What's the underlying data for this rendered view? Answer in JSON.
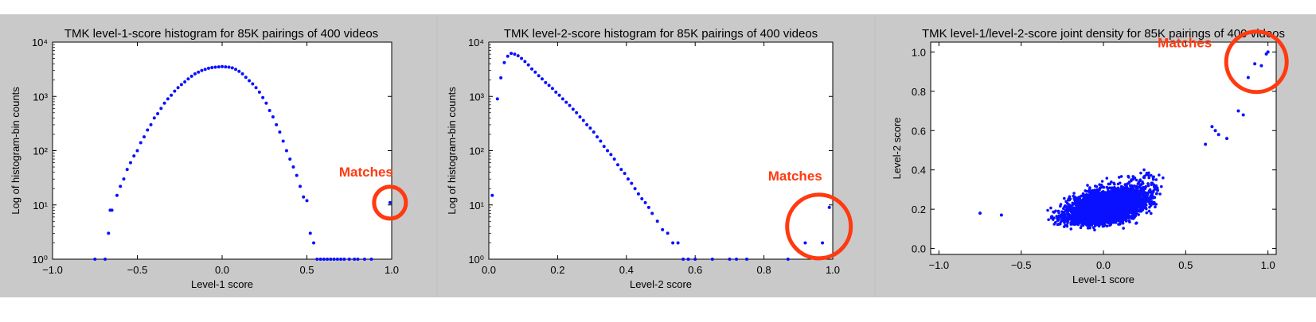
{
  "colors": {
    "panel_bg": "#c9c9c9",
    "plot_bg": "#ffffff",
    "point": "#0a10ff",
    "highlight": "#ff3a10",
    "text": "#000000"
  },
  "chart_data": [
    {
      "type": "scatter",
      "title": "TMK level-1-score histogram for 85K pairings of 400 videos",
      "xlabel": "Level-1 score",
      "ylabel": "Log of histogram-bin counts",
      "xlim": [
        -1.0,
        1.0
      ],
      "ylim": [
        1,
        10000
      ],
      "yscale": "log",
      "xticks": [
        "−1.0",
        "−0.5",
        "0.0",
        "0.5",
        "1.0"
      ],
      "xtick_values": [
        -1.0,
        -0.5,
        0.0,
        0.5,
        1.0
      ],
      "yticks": [
        "10⁰",
        "10¹",
        "10²",
        "10³",
        "10⁴"
      ],
      "ytick_values": [
        1,
        10,
        100,
        1000,
        10000
      ],
      "grid": false,
      "annotation": {
        "text": "Matches",
        "x": 0.99,
        "y": 11
      },
      "x": [
        -0.75,
        -0.69,
        -0.67,
        -0.66,
        -0.65,
        -0.62,
        -0.6,
        -0.58,
        -0.56,
        -0.54,
        -0.52,
        -0.5,
        -0.48,
        -0.46,
        -0.44,
        -0.42,
        -0.4,
        -0.38,
        -0.36,
        -0.34,
        -0.32,
        -0.3,
        -0.28,
        -0.26,
        -0.24,
        -0.22,
        -0.2,
        -0.18,
        -0.16,
        -0.14,
        -0.12,
        -0.1,
        -0.08,
        -0.06,
        -0.04,
        -0.02,
        0.0,
        0.02,
        0.04,
        0.06,
        0.08,
        0.1,
        0.12,
        0.14,
        0.16,
        0.18,
        0.2,
        0.22,
        0.24,
        0.26,
        0.28,
        0.3,
        0.32,
        0.34,
        0.36,
        0.38,
        0.4,
        0.42,
        0.44,
        0.46,
        0.48,
        0.5,
        0.52,
        0.54,
        0.56,
        0.58,
        0.6,
        0.62,
        0.64,
        0.66,
        0.68,
        0.7,
        0.72,
        0.75,
        0.78,
        0.8,
        0.84,
        0.88,
        0.99
      ],
      "y": [
        1,
        1,
        3,
        8,
        8,
        15,
        22,
        30,
        45,
        60,
        80,
        100,
        140,
        180,
        240,
        300,
        400,
        480,
        600,
        750,
        900,
        1050,
        1250,
        1450,
        1650,
        1850,
        2100,
        2350,
        2600,
        2800,
        3000,
        3150,
        3300,
        3400,
        3450,
        3500,
        3550,
        3500,
        3450,
        3350,
        3150,
        2900,
        2600,
        2250,
        1950,
        1700,
        1450,
        1200,
        950,
        750,
        550,
        420,
        300,
        220,
        150,
        100,
        70,
        50,
        35,
        22,
        14,
        12,
        3,
        2,
        1,
        1,
        1,
        1,
        1,
        1,
        1,
        1,
        1,
        1,
        1,
        1,
        1,
        1,
        11
      ]
    },
    {
      "type": "scatter",
      "title": "TMK level-2-score histogram for 85K pairings of 400 videos",
      "xlabel": "Level-2 score",
      "ylabel": "Log of histogram-bin counts",
      "xlim": [
        0.0,
        1.0
      ],
      "ylim": [
        1,
        10000
      ],
      "yscale": "log",
      "xticks": [
        "0.0",
        "0.2",
        "0.4",
        "0.6",
        "0.8",
        "1.0"
      ],
      "xtick_values": [
        0.0,
        0.2,
        0.4,
        0.6,
        0.8,
        1.0
      ],
      "yticks": [
        "10⁰",
        "10¹",
        "10²",
        "10³",
        "10⁴"
      ],
      "ytick_values": [
        1,
        10,
        100,
        1000,
        10000
      ],
      "grid": false,
      "annotation": {
        "text": "Matches",
        "x": 0.96,
        "y": 4
      },
      "x": [
        0.01,
        0.025,
        0.035,
        0.045,
        0.055,
        0.065,
        0.075,
        0.085,
        0.095,
        0.105,
        0.115,
        0.125,
        0.135,
        0.145,
        0.155,
        0.165,
        0.175,
        0.185,
        0.195,
        0.205,
        0.215,
        0.225,
        0.235,
        0.245,
        0.255,
        0.265,
        0.275,
        0.285,
        0.295,
        0.305,
        0.315,
        0.325,
        0.335,
        0.345,
        0.355,
        0.365,
        0.375,
        0.385,
        0.395,
        0.405,
        0.415,
        0.425,
        0.435,
        0.445,
        0.455,
        0.465,
        0.475,
        0.49,
        0.505,
        0.52,
        0.535,
        0.55,
        0.565,
        0.58,
        0.6,
        0.65,
        0.7,
        0.72,
        0.75,
        0.87,
        0.92,
        0.97,
        0.99
      ],
      "y": [
        15,
        900,
        2200,
        4200,
        5500,
        6200,
        6000,
        5600,
        5000,
        4400,
        3800,
        3200,
        2800,
        2400,
        2100,
        1800,
        1600,
        1400,
        1200,
        1050,
        900,
        780,
        680,
        580,
        500,
        420,
        360,
        300,
        260,
        220,
        180,
        150,
        120,
        100,
        85,
        70,
        55,
        45,
        38,
        30,
        25,
        20,
        16,
        13,
        11,
        9,
        7,
        5,
        3.5,
        3,
        2,
        2,
        1,
        1,
        1,
        1,
        1,
        1,
        1,
        1,
        2,
        2,
        9
      ]
    },
    {
      "type": "scatter",
      "title": "TMK level-1/level-2-score joint density for 85K pairings of 400 videos",
      "xlabel": "Level-1 score",
      "ylabel": "Level-2 score",
      "xlim": [
        -1.05,
        1.05
      ],
      "ylim": [
        -0.03,
        1.05
      ],
      "xticks": [
        "−1.0",
        "−0.5",
        "0.0",
        "0.5",
        "1.0"
      ],
      "xtick_values": [
        -1.0,
        -0.5,
        0.0,
        0.5,
        1.0
      ],
      "yticks": [
        "0.0",
        "0.2",
        "0.4",
        "0.6",
        "0.8",
        "1.0"
      ],
      "ytick_values": [
        0.0,
        0.2,
        0.4,
        0.6,
        0.8,
        1.0
      ],
      "grid": false,
      "annotation": {
        "text": "Matches",
        "x": 0.93,
        "y": 0.95
      },
      "outlier_points": [
        [
          -0.75,
          0.18
        ],
        [
          -0.62,
          0.17
        ],
        [
          0.62,
          0.53
        ],
        [
          0.66,
          0.62
        ],
        [
          0.68,
          0.6
        ],
        [
          0.7,
          0.58
        ],
        [
          0.75,
          0.56
        ],
        [
          0.82,
          0.7
        ],
        [
          0.85,
          0.68
        ],
        [
          0.88,
          0.87
        ],
        [
          0.92,
          0.94
        ],
        [
          0.96,
          0.93
        ],
        [
          0.99,
          0.99
        ],
        [
          1.0,
          1.0
        ]
      ]
    }
  ]
}
